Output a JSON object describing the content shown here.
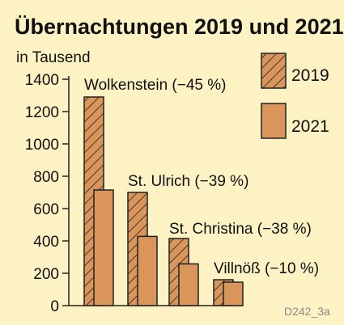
{
  "chart_data": {
    "type": "bar",
    "title": "Übernachtungen 2019 und 2021",
    "unit": "in Tausend",
    "categories": [
      "Wolkenstein",
      "St. Ulrich",
      "St. Christina",
      "Villnöß"
    ],
    "category_labels": [
      "Wolkenstein (−45 %)",
      "St. Ulrich (−39 %)",
      "St. Christina (−38 %)",
      "Villnöß (−10 %)"
    ],
    "series": [
      {
        "name": "2019",
        "values": [
          1290,
          700,
          415,
          160
        ],
        "color": "#d9955a",
        "pattern": "hatched"
      },
      {
        "name": "2021",
        "values": [
          715,
          428,
          258,
          145
        ],
        "color": "#d9955a",
        "pattern": "solid"
      }
    ],
    "ylim": [
      0,
      1400
    ],
    "yticks": [
      "0",
      "200",
      "400",
      "600",
      "800",
      "1000",
      "1200",
      "1400"
    ],
    "legend_position": "top-right",
    "grid": false
  },
  "source_code": "D242_3a",
  "colors": {
    "background": "#fdf2c4",
    "bar": "#d9955a",
    "stroke": "#222222"
  }
}
